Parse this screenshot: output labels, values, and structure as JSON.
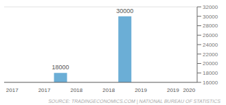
{
  "chart_data": {
    "type": "bar",
    "categories": [
      "2017",
      null,
      "2017",
      null,
      "2018",
      null,
      "2018",
      null,
      "2019",
      null,
      "2019",
      "2020"
    ],
    "values": [
      null,
      null,
      null,
      18000,
      null,
      null,
      null,
      30000,
      null,
      null,
      null,
      null
    ],
    "color": "#6baed6",
    "ylim": [
      16000,
      32000
    ],
    "yticks": [
      16000,
      18000,
      20000,
      22000,
      24000,
      26000,
      28000,
      30000,
      32000
    ],
    "grid": true,
    "data_labels": true,
    "source": "SOURCE: TRADINGECONOMICS.COM | NATIONAL BUREAU OF STATISTICS"
  }
}
